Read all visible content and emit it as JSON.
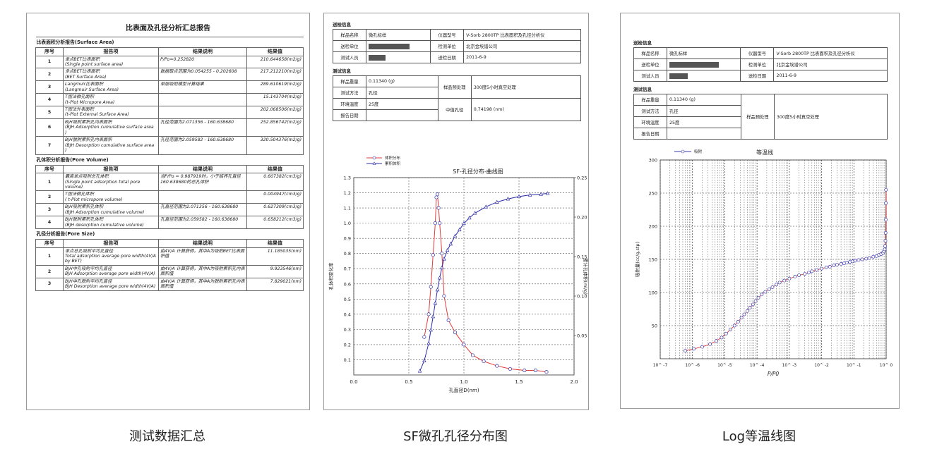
{
  "panel1": {
    "title": "比表面及孔径分析汇总报告",
    "sections": [
      {
        "heading": "比表面积分析报告(Surface Area)",
        "columns": [
          "序号",
          "报告项",
          "结果说明",
          "结果值"
        ],
        "rows": [
          {
            "no": "1",
            "item_cn": "单点BET比表面积",
            "item_en": "(Single point surface area)",
            "desc": "P/Po=0.252820",
            "value": "210.644658(m2/g)"
          },
          {
            "no": "2",
            "item_cn": "多点BET比表面积",
            "item_en": "(BET Surface Area)",
            "desc": "数据取点范围为0.054255 - 0.202608",
            "value": "217.212210(m2/g)"
          },
          {
            "no": "3",
            "item_cn": "Langmuir比表面积",
            "item_en": "(Langmuir Surface Area)",
            "desc": "单层吸附模型计算结果",
            "value": "289.610619(m2/g)"
          },
          {
            "no": "4",
            "item_cn": "T图法微孔面积",
            "item_en": "(t-Plot Micropore Area)",
            "desc": "",
            "value": "15.143704(m2/g)"
          },
          {
            "no": "5",
            "item_cn": "T图法外表面积",
            "item_en": "(t-Plot External Surface Area)",
            "desc": "",
            "value": "202.068506(m2/g)"
          },
          {
            "no": "6",
            "item_cn": "BJH吸附累积孔内表面积",
            "item_en": "(BJH Adsorption cumulative surface area )",
            "desc": "孔径范围为2.071356 - 160.638680",
            "value": "252.856742(m2/g)"
          },
          {
            "no": "7",
            "item_cn": "BJH脱附累积孔内表面积",
            "item_en": "(BJH Desorption cumulative surface area )",
            "desc": "孔径范围为2.059582 - 160.638680",
            "value": "320.504376(m2/g)"
          }
        ]
      },
      {
        "heading": "孔体积分析报告(Pore Volume)",
        "columns": [
          "序号",
          "报告项",
          "结果说明",
          "结果值"
        ],
        "rows": [
          {
            "no": "1",
            "item_cn": "最高单点吸附总孔体积",
            "item_en": "(Single point adsorption total pore volume)",
            "desc": "当P/Po = 0.987919时，小于临界孔直径160.638680的总孔体积",
            "value": "0.607382(cm3/g)"
          },
          {
            "no": "2",
            "item_cn": "T图法微孔体积",
            "item_en": "( t-Plot micropore volume)",
            "desc": "",
            "value": "0.004947(cm3/g)"
          },
          {
            "no": "3",
            "item_cn": "BJH吸附累积孔体积",
            "item_en": "(BJH Adsorption cumulative volume)",
            "desc": "孔直径范围为2.071356 - 160.638680",
            "value": "0.627309(cm3/g)"
          },
          {
            "no": "4",
            "item_cn": "BJH脱附累积孔体积",
            "item_en": "(BJH desorption cumulative volume)",
            "desc": "孔直径范围为2.059582 - 160.638680",
            "value": "0.658212(cm3/g)"
          }
        ]
      },
      {
        "heading": "孔径分析报告(Pore Size)",
        "columns": [
          "序号",
          "报告项",
          "结果说明",
          "结果值"
        ],
        "rows": [
          {
            "no": "1",
            "item_cn": "单点总孔吸附平均孔直径",
            "item_en": "Total adsorption average pore width(4V/A by BET)",
            "desc": "由4V/A 计算获得，其中A为吸附BET比表面积值",
            "value": "11.185035(nm)"
          },
          {
            "no": "2",
            "item_cn": "BJH中孔吸附平均孔直径",
            "item_en": "BJH Adsorption average pore width(4V/A)",
            "desc": "由4V/A 计算获得，其中A为吸附累积孔内表面积值",
            "value": "9.923546(nm)"
          },
          {
            "no": "3",
            "item_cn": "BJH中孔脱附平均孔直径",
            "item_en": "BJH Desorption average pore width(4V/A)",
            "desc": "由4V/A 计算获得，其中A为脱附累积孔内表面积值",
            "value": "7.829021(nm)"
          }
        ]
      }
    ]
  },
  "info": {
    "send_label": "送检信息",
    "test_label": "测试信息",
    "sample_name_k": "样品名称",
    "sample_name_v": "微孔标样",
    "instrument_k": "仪器型号",
    "instrument_v": "V-Sorb 2800TP 比表面积及孔径分析仪",
    "send_unit_k": "送检单位",
    "test_unit_k": "检测单位",
    "test_unit_v": "北京金埃谱公司",
    "tester_k": "测试人员",
    "send_date_k": "送检日期",
    "send_date_v": "2011-6-9",
    "weight_k": "样品重量",
    "weight_v": "0.11340 (g)",
    "method_k": "测试方法",
    "method_v": "孔径",
    "pretreat_k": "样品预处理",
    "pretreat_v": "300度5小时真空处理",
    "temp_k": "环境温度",
    "temp_v": "25度",
    "median_k": "中值孔径",
    "median_v": "0.74198 (nm)",
    "report_date_k": "报告日期"
  },
  "chart_data": [
    {
      "type": "line",
      "title": "SF-孔径分布-曲线图",
      "xlabel": "孔直径D(nm)",
      "ylabel": "孔体积变化率",
      "y2label": "累计孔体积(ml/g)",
      "xlim": [
        0,
        2.0
      ],
      "ylim": [
        0,
        1.3
      ],
      "y2lim": [
        0,
        0.25
      ],
      "xticks": [
        "0.0",
        "0.5",
        "1.0",
        "1.5",
        "2.0"
      ],
      "yticks": [
        "0.1",
        "0.2",
        "0.3",
        "0.4",
        "0.5",
        "0.6",
        "0.7",
        "0.8",
        "0.9",
        "1.0",
        "1.1",
        "1.2",
        "1.3"
      ],
      "y2ticks": [
        "0.05",
        "0.10",
        "0.15",
        "0.20",
        "0.25"
      ],
      "legend": [
        "体积分布",
        "累积体积"
      ],
      "series": [
        {
          "name": "体积分布",
          "color": "#e23b3b",
          "axis": "left",
          "x": [
            0.64,
            0.68,
            0.7,
            0.72,
            0.74,
            0.75,
            0.76,
            0.77,
            0.78,
            0.8,
            0.82,
            0.86,
            0.92,
            1.0,
            1.08,
            1.18,
            1.3,
            1.42,
            1.55,
            1.65,
            1.75
          ],
          "y": [
            0.25,
            0.4,
            0.58,
            0.79,
            1.0,
            1.17,
            1.19,
            1.1,
            1.0,
            0.8,
            0.52,
            0.36,
            0.28,
            0.2,
            0.13,
            0.09,
            0.06,
            0.04,
            0.03,
            0.03,
            0.02
          ]
        },
        {
          "name": "累积体积",
          "color": "#2c2ca8",
          "axis": "right",
          "x": [
            0.6,
            0.64,
            0.68,
            0.7,
            0.72,
            0.74,
            0.76,
            0.78,
            0.8,
            0.82,
            0.85,
            0.88,
            0.92,
            0.96,
            1.0,
            1.05,
            1.1,
            1.2,
            1.3,
            1.4,
            1.5,
            1.6,
            1.7,
            1.76
          ],
          "y": [
            0.005,
            0.018,
            0.04,
            0.057,
            0.074,
            0.091,
            0.108,
            0.123,
            0.136,
            0.147,
            0.158,
            0.166,
            0.176,
            0.184,
            0.192,
            0.199,
            0.205,
            0.213,
            0.219,
            0.223,
            0.226,
            0.228,
            0.229,
            0.23
          ]
        }
      ]
    },
    {
      "type": "line",
      "title": "等温线",
      "xlabel": "P/P0",
      "ylabel": "吸附量(cc/g,stp)",
      "xscale": "log",
      "xlim": [
        1e-07,
        1
      ],
      "ylim": [
        0,
        300
      ],
      "xticks": [
        "10^ -7",
        "10^ -6",
        "10^ -5",
        "10^ -4",
        "10^ -3",
        "10^ -2",
        "10^ -1",
        "10^ 0"
      ],
      "yticks": [
        "50",
        "100",
        "150",
        "200",
        "250",
        "300"
      ],
      "legend": [
        "吸附"
      ],
      "series": [
        {
          "name": "吸附",
          "color": "#3a3ab0",
          "x": [
            6e-07,
            1.1e-06,
            2e-06,
            3.5e-06,
            5.5e-06,
            8e-06,
            1.1e-05,
            1.5e-05,
            2e-05,
            2.6e-05,
            3.3e-05,
            4e-05,
            5e-05,
            6e-05,
            7.5e-05,
            9e-05,
            0.00011,
            0.00014,
            0.00018,
            0.00024,
            0.0003,
            0.0004,
            0.0005,
            0.0007,
            0.001,
            0.0015,
            0.002,
            0.003,
            0.004,
            0.005,
            0.007,
            0.01,
            0.014,
            0.018,
            0.024,
            0.03,
            0.04,
            0.05,
            0.06,
            0.075,
            0.09,
            0.11,
            0.14,
            0.18,
            0.24,
            0.3,
            0.4,
            0.5,
            0.6,
            0.7,
            0.8,
            0.85,
            0.9,
            0.93,
            0.95,
            0.96,
            0.97,
            0.98,
            0.985
          ],
          "y": [
            12,
            15,
            18,
            22,
            27,
            32,
            38,
            44,
            50,
            56,
            62,
            67,
            72,
            77,
            82,
            87,
            92,
            97,
            101,
            105,
            108,
            112,
            115,
            118,
            121,
            124,
            126,
            128,
            130,
            132,
            134,
            136,
            138,
            139,
            141,
            142,
            143,
            144,
            145,
            146,
            147,
            148,
            149,
            150,
            151,
            152,
            154,
            155,
            157,
            158,
            160,
            162,
            165,
            170,
            178,
            190,
            210,
            235,
            255
          ]
        }
      ]
    }
  ],
  "captions": [
    "测试数据汇总",
    "SF微孔孔径分布图",
    "Log等温线图"
  ]
}
